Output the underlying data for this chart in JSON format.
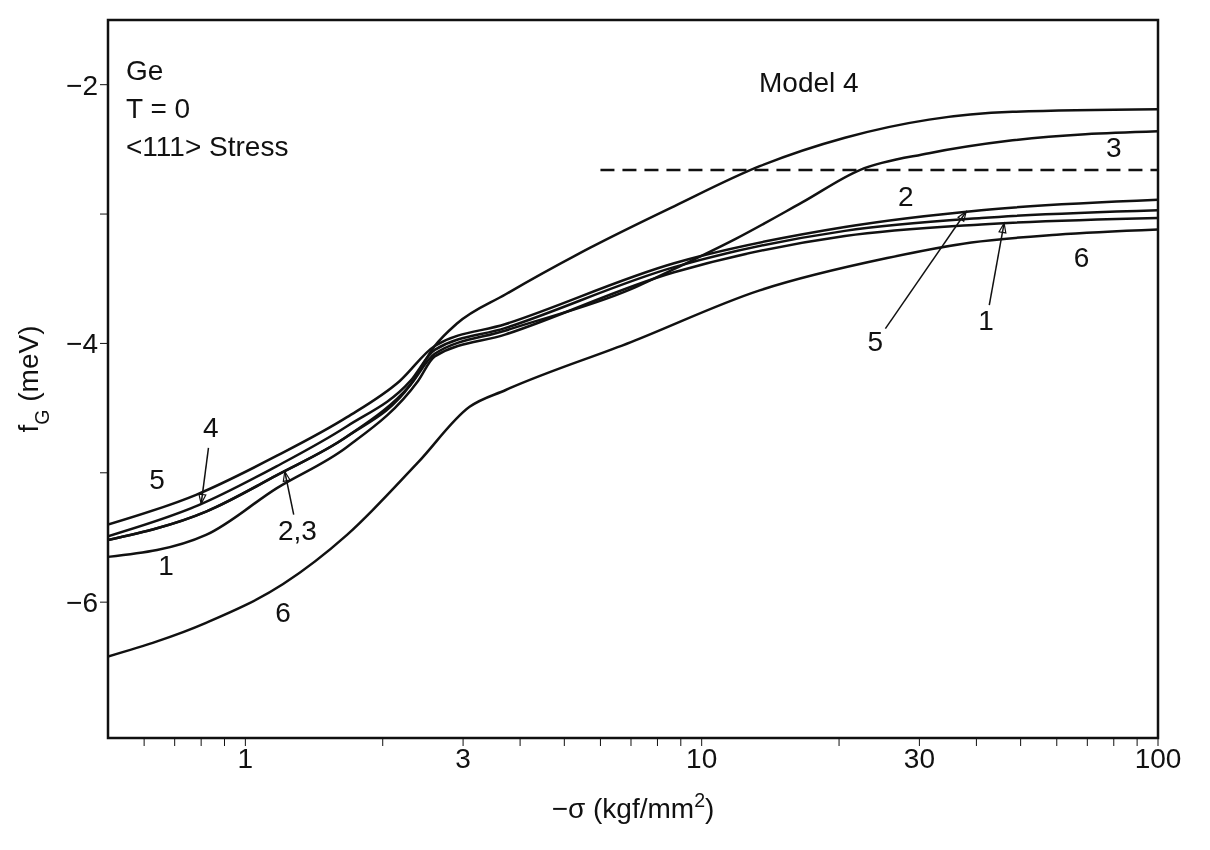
{
  "chart_data": {
    "type": "line",
    "xlabel": "−σ (kgf/mm$^{2}$)",
    "ylabel": "f$_{G}$ (meV)",
    "log": "x",
    "xlim": [
      0.5,
      100
    ],
    "xticks": [
      {
        "value": 0.6,
        "label": null
      },
      {
        "value": 0.7,
        "label": null
      },
      {
        "value": 0.8,
        "label": null
      },
      {
        "value": 0.9,
        "label": null
      },
      1,
      {
        "value": 2,
        "label": null
      },
      3,
      {
        "value": 4,
        "label": null
      },
      {
        "value": 5,
        "label": null
      },
      {
        "value": 6,
        "label": null
      },
      {
        "value": 7,
        "label": null
      },
      {
        "value": 8,
        "label": null
      },
      {
        "value": 9,
        "label": null
      },
      10,
      {
        "value": 20,
        "label": null
      },
      30,
      {
        "value": 40,
        "label": null
      },
      {
        "value": 50,
        "label": null
      },
      {
        "value": 60,
        "label": null
      },
      {
        "value": 70,
        "label": null
      },
      {
        "value": 80,
        "label": null
      },
      {
        "value": 90,
        "label": null
      },
      100
    ],
    "ylim": [
      -7.05,
      -1.5
    ],
    "yticks": [
      -6,
      {
        "value": -5,
        "label": null
      },
      -4,
      {
        "value": -3,
        "label": null
      },
      -2
    ],
    "marker": "none",
    "series": [
      {
        "color": "#111111",
        "x": [
          0.5,
          0.82,
          1.17,
          1.67,
          2.39,
          2.6,
          3.72,
          8.7,
          20.6,
          41,
          100
        ],
        "values": [
          -5.65,
          -5.48,
          -5.12,
          -4.8,
          -4.29,
          -4.1,
          -3.93,
          -3.45,
          -3.17,
          -3.08,
          -3.03
        ]
      },
      {
        "color": "#111111",
        "x": [
          0.5,
          0.82,
          1.17,
          1.67,
          2.3,
          2.6,
          3.72,
          7,
          9,
          11.9,
          16.6,
          22.2,
          31.5,
          48,
          100
        ],
        "values": [
          -5.52,
          -5.3,
          -5.02,
          -4.72,
          -4.32,
          -4.08,
          -3.9,
          -3.58,
          -3.4,
          -3.19,
          -2.91,
          -2.66,
          -2.53,
          -2.43,
          -2.36
        ]
      },
      {
        "color": "#111111",
        "x": [
          0.5,
          0.82,
          1.17,
          1.67,
          2.3,
          2.6,
          2.9,
          3.72,
          5.7,
          8.7,
          13.4,
          20.6,
          31.5,
          48,
          100
        ],
        "values": [
          -5.52,
          -5.3,
          -5.02,
          -4.72,
          -4.32,
          -4.02,
          -3.85,
          -3.62,
          -3.26,
          -2.94,
          -2.63,
          -2.41,
          -2.27,
          -2.21,
          -2.19
        ]
      },
      {
        "color": "#111111",
        "x": [
          0.5,
          0.79,
          1.17,
          1.67,
          2.3,
          2.6,
          3.72,
          8.7,
          20.6,
          41,
          100
        ],
        "values": [
          -5.49,
          -5.25,
          -4.95,
          -4.64,
          -4.29,
          -4.05,
          -3.88,
          -3.41,
          -3.13,
          -3.03,
          -2.97
        ]
      },
      {
        "color": "#111111",
        "x": [
          0.5,
          0.78,
          1.17,
          1.67,
          2.18,
          2.6,
          3.72,
          8.7,
          20.6,
          41,
          100
        ],
        "values": [
          -5.4,
          -5.17,
          -4.87,
          -4.57,
          -4.29,
          -4.02,
          -3.85,
          -3.38,
          -3.1,
          -2.97,
          -2.89
        ]
      },
      {
        "color": "#111111",
        "x": [
          0.5,
          0.82,
          1.21,
          1.67,
          2.39,
          3.1,
          3.72,
          7,
          13.4,
          25.5,
          39,
          60,
          100
        ],
        "values": [
          -6.42,
          -6.16,
          -5.86,
          -5.48,
          -4.92,
          -4.49,
          -4.36,
          -3.99,
          -3.59,
          -3.34,
          -3.22,
          -3.16,
          -3.12
        ]
      },
      {
        "color": "#111111",
        "line_style": "dashed",
        "x": [
          6,
          100
        ],
        "values": [
          -2.66,
          -2.66
        ]
      }
    ],
    "annotations": [
      "Ge",
      "T = 0",
      "<111> Stress",
      "Model 4",
      "3",
      "2",
      "6",
      "5",
      "1",
      "6",
      {
        "text": "5",
        "x": 38,
        "y": -2.98
      },
      {
        "text": "1",
        "x": 46,
        "y": -3.07
      },
      {
        "text": "4",
        "x": 0.8,
        "y": -5.24
      },
      {
        "text": "2,3",
        "x": 1.22,
        "y": -4.99
      }
    ]
  }
}
